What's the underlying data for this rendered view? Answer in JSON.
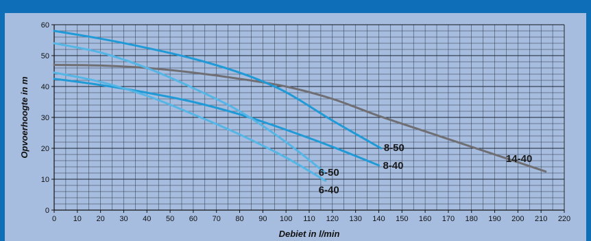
{
  "chart_data": {
    "type": "line",
    "xlabel": "Debiet in l/min",
    "ylabel": "Opvoerhoogte in m",
    "xlim": [
      0,
      220
    ],
    "ylim": [
      0,
      60
    ],
    "x_ticks": [
      0,
      10,
      20,
      30,
      40,
      50,
      60,
      70,
      80,
      90,
      100,
      110,
      120,
      130,
      140,
      150,
      160,
      170,
      180,
      190,
      200,
      210,
      220
    ],
    "y_ticks": [
      0,
      10,
      20,
      30,
      40,
      50,
      60
    ],
    "grid": true,
    "series": [
      {
        "name": "14-40",
        "color": "#6f6f73",
        "x": [
          0,
          20,
          40,
          60,
          80,
          100,
          120,
          140,
          160,
          180,
          200,
          212
        ],
        "y": [
          47,
          46.8,
          46,
          44.5,
          42.5,
          40,
          36,
          30.5,
          25.5,
          20.5,
          15.5,
          12.5
        ]
      },
      {
        "name": "8-50",
        "color": "#1f9ad6",
        "x": [
          0,
          20,
          40,
          60,
          80,
          95,
          105,
          120,
          141
        ],
        "y": [
          58,
          55.5,
          52.5,
          49,
          44.5,
          40,
          36,
          29,
          20
        ]
      },
      {
        "name": "8-40",
        "color": "#1f9ad6",
        "x": [
          0,
          20,
          40,
          60,
          80,
          100,
          120,
          140
        ],
        "y": [
          42.5,
          40.5,
          38,
          35,
          31,
          26,
          20.5,
          14.5
        ]
      },
      {
        "name": "6-50",
        "color": "#55b6e6",
        "x": [
          0,
          20,
          40,
          60,
          80,
          100,
          117
        ],
        "y": [
          54,
          51,
          46,
          39.5,
          32,
          22,
          12
        ]
      },
      {
        "name": "6-40",
        "color": "#55b6e6",
        "x": [
          0,
          20,
          40,
          60,
          80,
          100,
          117
        ],
        "y": [
          44.5,
          41.5,
          37,
          31,
          24.5,
          17,
          9.5
        ]
      }
    ]
  }
}
